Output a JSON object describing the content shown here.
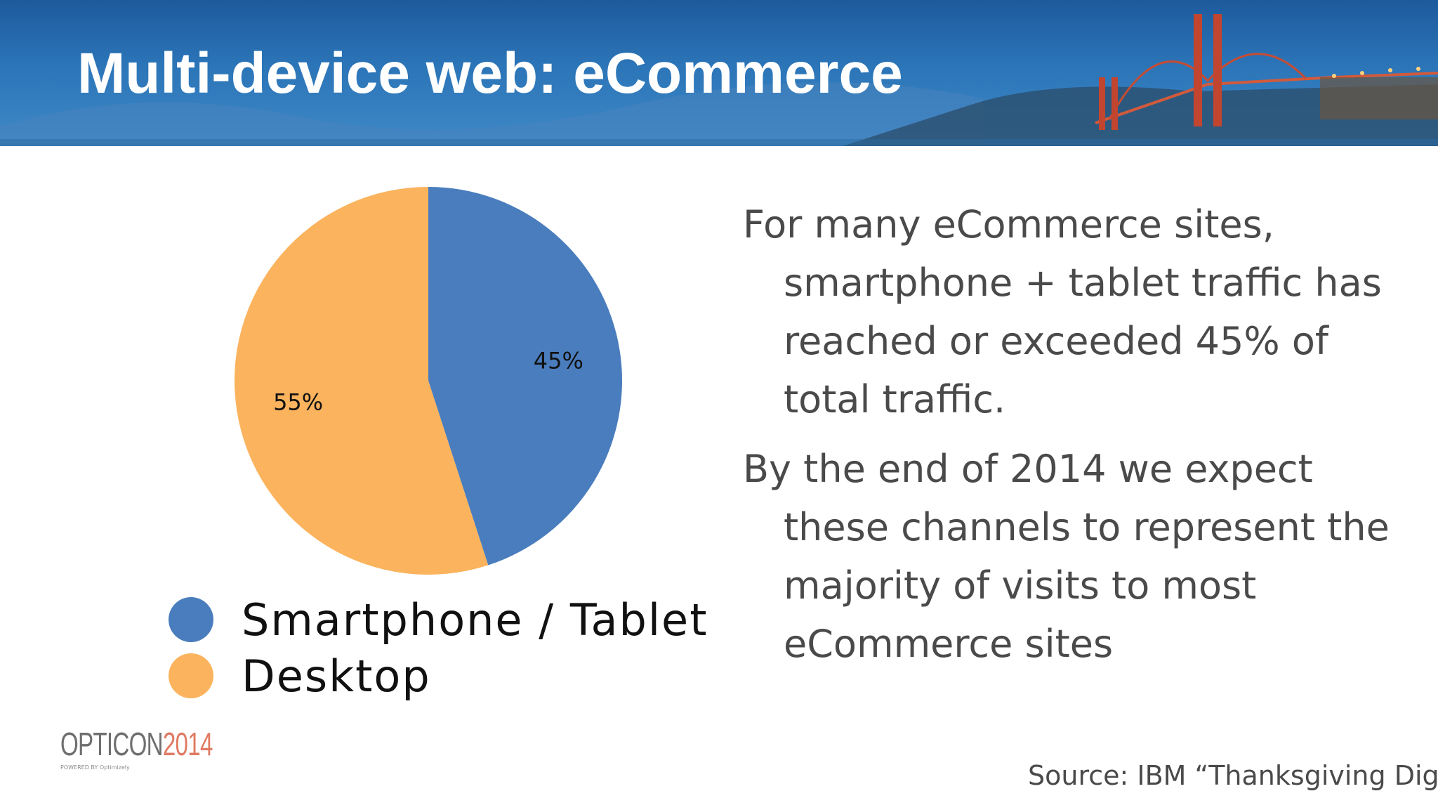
{
  "slide": {
    "title": "Multi-device web: eCommerce",
    "bullets": [
      "For many eCommerce sites, smartphone + tablet traffic has reached or exceeded 45% of total traffic.",
      "By the end of 2014 we expect these channels to represent the majority of visits to most eCommerce sites"
    ],
    "logo": {
      "text": "OPTICON",
      "year": "2014",
      "tagline": "POWERED BY Optimizely"
    },
    "source": "Source: IBM “Thanksgiving Diges"
  },
  "colors": {
    "smartphone_tablet": "#4a7dbd",
    "desktop": "#fbb35e",
    "header": "#2b75b8"
  },
  "chart_data": {
    "type": "pie",
    "title": "",
    "categories": [
      "Smartphone / Tablet",
      "Desktop"
    ],
    "values": [
      45,
      55
    ],
    "labels": [
      "45%",
      "55%"
    ],
    "legend": "bottom-left"
  }
}
